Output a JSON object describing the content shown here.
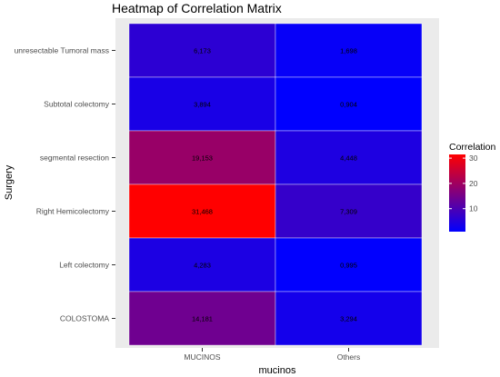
{
  "chart_data": {
    "type": "heatmap",
    "title": "Heatmap of Correlation Matrix",
    "xlabel": "mucinos",
    "ylabel": "Surgery",
    "x_categories": [
      "MUCINOS",
      "Others"
    ],
    "y_categories": [
      "unresectable Tumoral mass",
      "Subtotal colectomy",
      "segmental resection",
      "Right Hemicolectomy",
      "Left colectomy",
      "COLOSTOMA"
    ],
    "values": [
      [
        6.173,
        1.698
      ],
      [
        3.894,
        0.904
      ],
      [
        19.153,
        4.448
      ],
      [
        31.468,
        7.309
      ],
      [
        4.283,
        0.995
      ],
      [
        14.181,
        3.294
      ]
    ],
    "labels": [
      [
        "6,173",
        "1,698"
      ],
      [
        "3,894",
        "0,904"
      ],
      [
        "19,153",
        "4,448"
      ],
      [
        "31,468",
        "7,309"
      ],
      [
        "4,283",
        "0,995"
      ],
      [
        "14,181",
        "3,294"
      ]
    ],
    "legend": {
      "title": "Correlation",
      "ticks": [
        10,
        20,
        30
      ],
      "placement": "right"
    },
    "color_scale": {
      "low": "#0000ff",
      "high": "#ff0000",
      "min": 0.904,
      "max": 31.468
    },
    "panel_background": "#ebebeb",
    "grid": false
  }
}
